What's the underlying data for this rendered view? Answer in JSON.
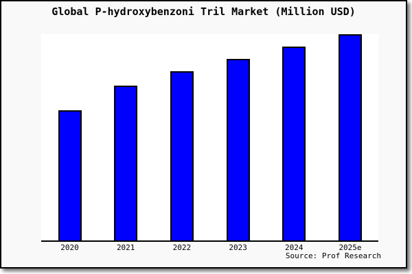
{
  "figure": {
    "title": "Global P-hydroxybenzoni Tril Market (Million USD)",
    "source_note": "Source: Prof Research"
  },
  "colors": {
    "bar_fill": "#0000ff",
    "bar_edge": "#000000",
    "figure_background": "#f9f9f9",
    "plot_background": "#ffffff",
    "frame_border": "#000000",
    "axis_line": "#000000",
    "text": "#000000"
  },
  "chart_data": {
    "type": "bar",
    "title": "Global P-hydroxybenzoni Tril Market (Million USD)",
    "categories": [
      "2020",
      "2021",
      "2022",
      "2023",
      "2024",
      "2025e"
    ],
    "values": [
      63,
      75,
      82,
      88,
      94,
      100
    ],
    "value_note": "No y-axis ticks or data labels are shown; values estimated from bar pixel heights as percent of tallest bar (2025e = 100)",
    "xlabel": "",
    "ylabel": "",
    "ylim": [
      0,
      100
    ],
    "grid": false,
    "legend": false,
    "y_axis_labels_visible": false,
    "source": "Source: Prof Research"
  }
}
